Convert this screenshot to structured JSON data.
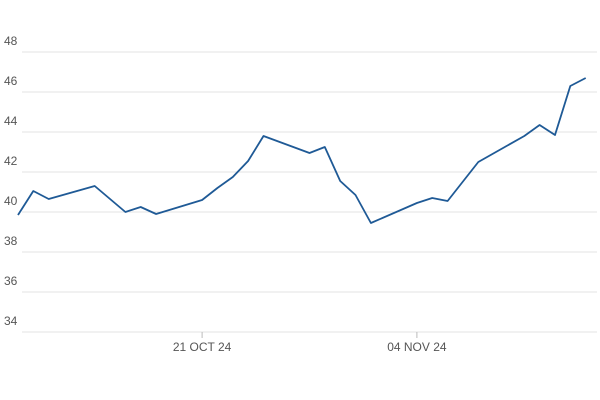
{
  "chart_data": {
    "type": "line",
    "x": [
      "2024-10-09",
      "2024-10-10",
      "2024-10-11",
      "2024-10-14",
      "2024-10-16",
      "2024-10-17",
      "2024-10-18",
      "2024-10-21",
      "2024-10-22",
      "2024-10-23",
      "2024-10-24",
      "2024-10-25",
      "2024-10-28",
      "2024-10-29",
      "2024-10-30",
      "2024-10-31",
      "2024-11-01",
      "2024-11-04",
      "2024-11-05",
      "2024-11-06",
      "2024-11-08",
      "2024-11-11",
      "2024-11-12",
      "2024-11-13",
      "2024-11-14",
      "2024-11-15"
    ],
    "series": [
      {
        "color": "#1f5a96",
        "values": [
          39.85,
          41.05,
          40.65,
          41.3,
          40.0,
          40.25,
          39.9,
          40.6,
          41.2,
          41.75,
          42.55,
          43.8,
          42.95,
          43.25,
          41.55,
          40.85,
          39.45,
          40.45,
          40.7,
          40.55,
          42.5,
          43.8,
          44.35,
          43.85,
          46.3,
          46.7
        ]
      }
    ],
    "xlim": [
      "2024-10-09",
      "2024-11-16"
    ],
    "xticks": [
      {
        "value": "2024-10-21",
        "label": "21 OCT 24"
      },
      {
        "value": "2024-11-04",
        "label": "04 NOV 24"
      }
    ],
    "ylim": [
      34,
      48
    ],
    "yticks": [
      34,
      36,
      38,
      40,
      42,
      44,
      46,
      48
    ],
    "grid": true
  }
}
